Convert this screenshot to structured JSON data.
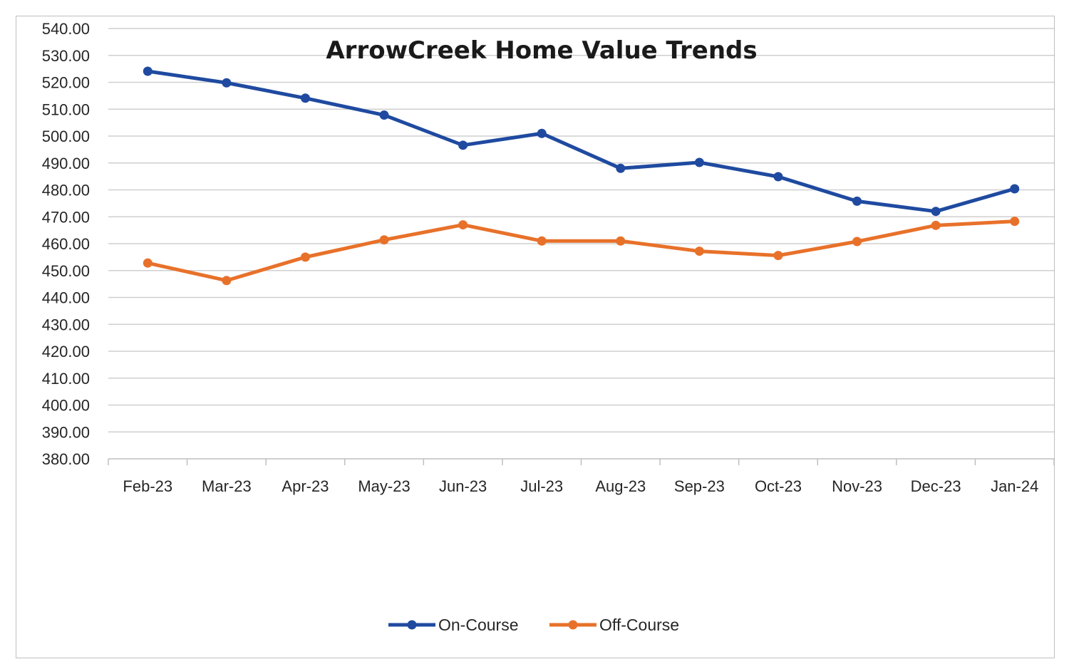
{
  "chart_data": {
    "type": "line",
    "title": "ArrowCreek Home Value Trends",
    "xlabel": "",
    "ylabel": "",
    "categories": [
      "Feb-23",
      "Mar-23",
      "Apr-23",
      "May-23",
      "Jun-23",
      "Jul-23",
      "Aug-23",
      "Sep-23",
      "Oct-23",
      "Nov-23",
      "Dec-23",
      "Jan-24"
    ],
    "ylim": [
      380,
      540
    ],
    "y_ticks": [
      "540.00",
      "530.00",
      "520.00",
      "510.00",
      "500.00",
      "490.00",
      "480.00",
      "470.00",
      "460.00",
      "450.00",
      "440.00",
      "430.00",
      "420.00",
      "410.00",
      "400.00",
      "390.00",
      "380.00"
    ],
    "grid": true,
    "legend_position": "bottom",
    "series": [
      {
        "name": "On-Course",
        "color": "#1f4aa0",
        "values": [
          524.1,
          519.8,
          514.1,
          507.8,
          496.6,
          501.0,
          488.0,
          490.2,
          484.9,
          475.8,
          472.0,
          480.4
        ]
      },
      {
        "name": "Off-Course",
        "color": "#e8712a",
        "values": [
          452.8,
          446.3,
          455.0,
          461.4,
          467.0,
          461.0,
          461.0,
          457.2,
          455.6,
          460.8,
          466.8,
          468.3
        ]
      }
    ]
  }
}
